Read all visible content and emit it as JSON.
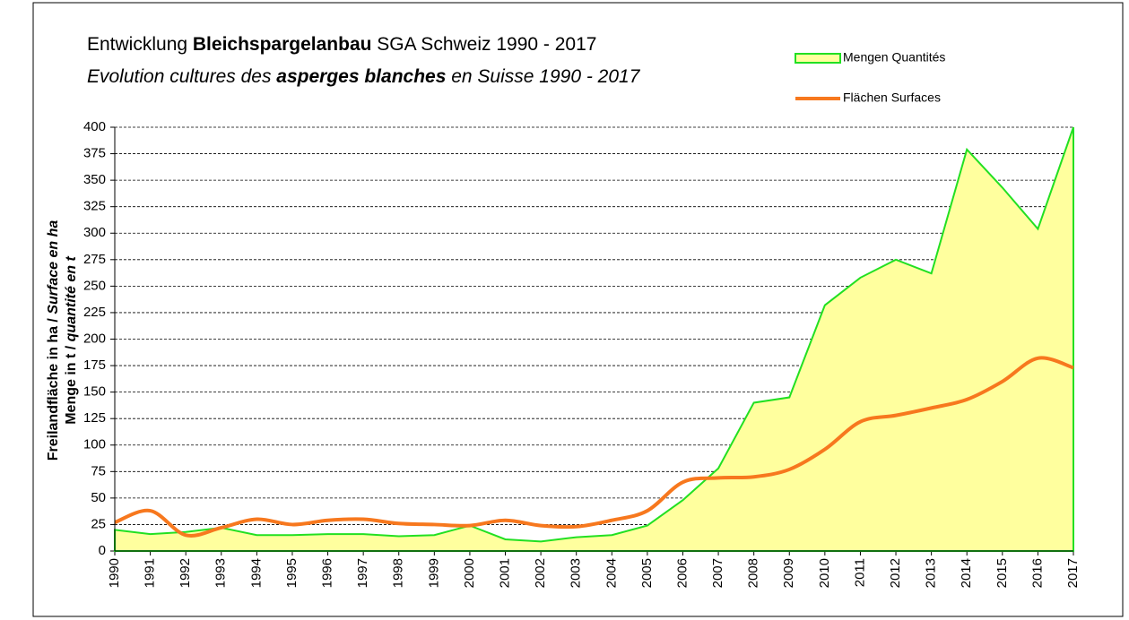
{
  "chart_data": {
    "type": "area-line",
    "title": [
      "Entwicklung ",
      "Bleichspargelanbau",
      " SGA Schweiz 1990 - 2017"
    ],
    "subtitle": [
      "Evolution cultures des ",
      "asperges blanches",
      " en Suisse 1990 - 2017"
    ],
    "ylabel": [
      [
        "Freilandfläche  in ha / ",
        "Surface en ha"
      ],
      [
        "Menge in t / ",
        "quantité en t"
      ]
    ],
    "categories": [
      "1990",
      "1991",
      "1992",
      "1993",
      "1994",
      "1995",
      "1996",
      "1997",
      "1998",
      "1999",
      "2000",
      "2001",
      "2002",
      "2003",
      "2004",
      "2005",
      "2006",
      "2007",
      "2008",
      "2009",
      "2010",
      "2011",
      "2012",
      "2013",
      "2014",
      "2015",
      "2016",
      "2017"
    ],
    "series": [
      {
        "name": "Mengen Quantités",
        "color": "#22e022",
        "fill": "#ffff9e",
        "values": [
          20,
          16,
          18,
          22,
          15,
          15,
          16,
          16,
          14,
          15,
          24,
          11,
          9,
          13,
          15,
          24,
          48,
          78,
          140,
          145,
          232,
          258,
          275,
          262,
          379,
          343,
          304,
          400
        ]
      },
      {
        "name": "Flächen Surfaces",
        "color": "#f7781e",
        "values": [
          27,
          38,
          15,
          22,
          30,
          25,
          29,
          30,
          26,
          25,
          24,
          29,
          24,
          23,
          29,
          38,
          65,
          69,
          70,
          77,
          96,
          122,
          128,
          135,
          143,
          160,
          182,
          173
        ]
      }
    ],
    "ylim": [
      0,
      400
    ],
    "yticks": [
      0,
      25,
      50,
      75,
      100,
      125,
      150,
      175,
      200,
      225,
      250,
      275,
      300,
      325,
      350,
      375,
      400
    ],
    "grid": true
  }
}
